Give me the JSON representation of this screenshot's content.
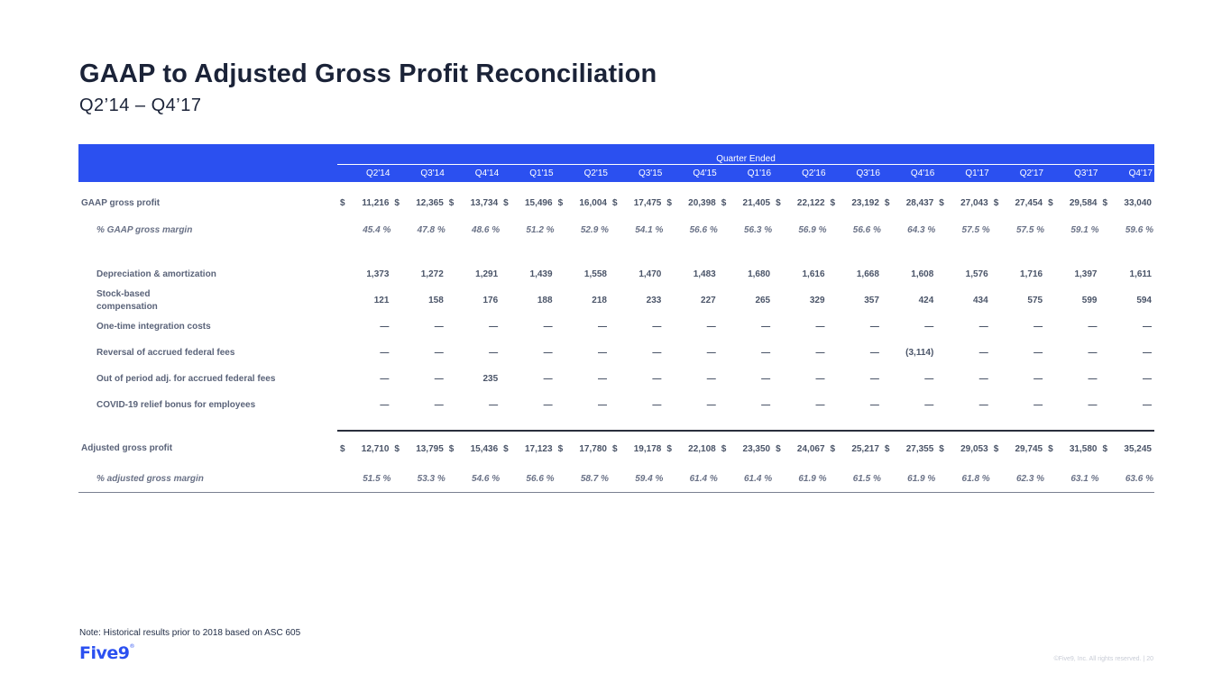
{
  "title": "GAAP to Adjusted Gross Profit Reconciliation",
  "subtitle": "Q2’14 – Q4’17",
  "table": {
    "group_header": "Quarter Ended",
    "quarters": [
      "Q2'14",
      "Q3'14",
      "Q4'14",
      "Q1'15",
      "Q2'15",
      "Q3'15",
      "Q4'15",
      "Q1'16",
      "Q2'16",
      "Q3'16",
      "Q4'16",
      "Q1'17",
      "Q2'17",
      "Q3'17",
      "Q4'17"
    ],
    "gaap_gross_profit": {
      "label": "GAAP gross profit",
      "currency": "$",
      "values": [
        "11,216",
        "12,365",
        "13,734",
        "15,496",
        "16,004",
        "17,475",
        "20,398",
        "21,405",
        "22,122",
        "23,192",
        "28,437",
        "27,043",
        "27,454",
        "29,584",
        "33,040"
      ]
    },
    "gaap_gross_margin": {
      "label": "% GAAP gross margin",
      "values": [
        "45.4 %",
        "47.8 %",
        "48.6 %",
        "51.2 %",
        "52.9 %",
        "54.1 %",
        "56.6 %",
        "56.3 %",
        "56.9 %",
        "56.6 %",
        "64.3 %",
        "57.5 %",
        "57.5 %",
        "59.1 %",
        "59.6 %"
      ]
    },
    "depreciation": {
      "label": "Depreciation & amortization",
      "values": [
        "1,373",
        "1,272",
        "1,291",
        "1,439",
        "1,558",
        "1,470",
        "1,483",
        "1,680",
        "1,616",
        "1,668",
        "1,608",
        "1,576",
        "1,716",
        "1,397",
        "1,611"
      ]
    },
    "stock_comp": {
      "label_line1": "Stock-based",
      "label_line2": "compensation",
      "values": [
        "121",
        "158",
        "176",
        "188",
        "218",
        "233",
        "227",
        "265",
        "329",
        "357",
        "424",
        "434",
        "575",
        "599",
        "594"
      ]
    },
    "integration_costs": {
      "label": "One-time integration costs",
      "values": [
        "—",
        "—",
        "—",
        "—",
        "—",
        "—",
        "—",
        "—",
        "—",
        "—",
        "—",
        "—",
        "—",
        "—",
        "—"
      ]
    },
    "reversal_fees": {
      "label": "Reversal of accrued federal fees",
      "values": [
        "—",
        "—",
        "—",
        "—",
        "—",
        "—",
        "—",
        "—",
        "—",
        "—",
        "(3,114)",
        "—",
        "—",
        "—",
        "—"
      ]
    },
    "out_of_period": {
      "label": "Out of period adj. for accrued federal fees",
      "values": [
        "—",
        "—",
        "235",
        "—",
        "—",
        "—",
        "—",
        "—",
        "—",
        "—",
        "—",
        "—",
        "—",
        "—",
        "—"
      ]
    },
    "covid_bonus": {
      "label": "COVID-19 relief bonus for employees",
      "values": [
        "—",
        "—",
        "—",
        "—",
        "—",
        "—",
        "—",
        "—",
        "—",
        "—",
        "—",
        "—",
        "—",
        "—",
        "—"
      ]
    },
    "adjusted_gross_profit": {
      "label": "Adjusted gross profit",
      "currency": "$",
      "values": [
        "12,710",
        "13,795",
        "15,436",
        "17,123",
        "17,780",
        "19,178",
        "22,108",
        "23,350",
        "24,067",
        "25,217",
        "27,355",
        "29,053",
        "29,745",
        "31,580",
        "35,245"
      ]
    },
    "adjusted_gross_margin": {
      "label": "% adjusted gross margin",
      "values": [
        "51.5 %",
        "53.3 %",
        "54.6 %",
        "56.6 %",
        "58.7 %",
        "59.4 %",
        "61.4 %",
        "61.4 %",
        "61.9 %",
        "61.5 %",
        "61.9 %",
        "61.8 %",
        "62.3 %",
        "63.1 %",
        "63.6 %"
      ]
    }
  },
  "note": "Note: Historical results prior to 2018 based on ASC 605",
  "logo_text": "Five9",
  "logo_mark": "®",
  "footer": "©Five9, Inc. All rights reserved. | 20",
  "colors": {
    "header_blue": "#2b50f0",
    "brand_blue": "#2b50f0"
  }
}
